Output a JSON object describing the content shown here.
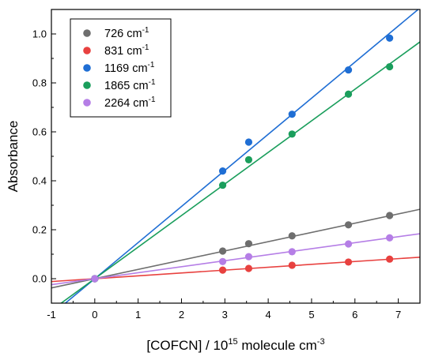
{
  "chart_data": {
    "type": "scatter",
    "title": "",
    "xlabel": "[COFCN] / 10",
    "xlabel_sup": "15",
    "xlabel_suffix": " molecule cm",
    "xlabel_suffix_sup": "-3",
    "ylabel": "Absorbance",
    "xlim": [
      -1,
      7.5
    ],
    "ylim": [
      -0.1,
      1.1
    ],
    "xticks": [
      -1,
      0,
      1,
      2,
      3,
      4,
      5,
      6,
      7
    ],
    "yticks": [
      0.0,
      0.2,
      0.4,
      0.6,
      0.8,
      1.0
    ],
    "xtick_labels": [
      "-1",
      "0",
      "1",
      "2",
      "3",
      "4",
      "5",
      "6",
      "7"
    ],
    "ytick_labels": [
      "0.0",
      "0.2",
      "0.4",
      "0.6",
      "0.8",
      "1.0"
    ],
    "grid": false,
    "legend_position": "top-left",
    "series": [
      {
        "name": "726 cm",
        "name_sup": "-1",
        "color": "#6e6e6e",
        "x": [
          0,
          2.95,
          3.55,
          4.55,
          5.85,
          6.8
        ],
        "y": [
          0.0,
          0.113,
          0.143,
          0.175,
          0.22,
          0.258
        ],
        "fit_slope": 0.0378
      },
      {
        "name": "831 cm",
        "name_sup": "-1",
        "color": "#e8413f",
        "x": [
          0,
          2.95,
          3.55,
          4.55,
          5.85,
          6.8
        ],
        "y": [
          0.0,
          0.035,
          0.042,
          0.055,
          0.068,
          0.08
        ],
        "fit_slope": 0.0117
      },
      {
        "name": "1169 cm",
        "name_sup": "-1",
        "color": "#1f6ed4",
        "x": [
          0,
          2.95,
          3.55,
          4.55,
          5.85,
          6.8
        ],
        "y": [
          0.0,
          0.44,
          0.558,
          0.672,
          0.853,
          0.983
        ],
        "fit_slope": 0.1475
      },
      {
        "name": "1865 cm",
        "name_sup": "-1",
        "color": "#1a9e5c",
        "x": [
          0,
          2.95,
          3.55,
          4.55,
          5.85,
          6.8
        ],
        "y": [
          0.0,
          0.382,
          0.486,
          0.591,
          0.754,
          0.866
        ],
        "fit_slope": 0.129
      },
      {
        "name": "2264 cm",
        "name_sup": "-1",
        "color": "#b57ee6",
        "x": [
          0,
          2.95,
          3.55,
          4.55,
          5.85,
          6.8
        ],
        "y": [
          0.0,
          0.07,
          0.09,
          0.11,
          0.142,
          0.167
        ],
        "fit_slope": 0.0245
      }
    ]
  }
}
